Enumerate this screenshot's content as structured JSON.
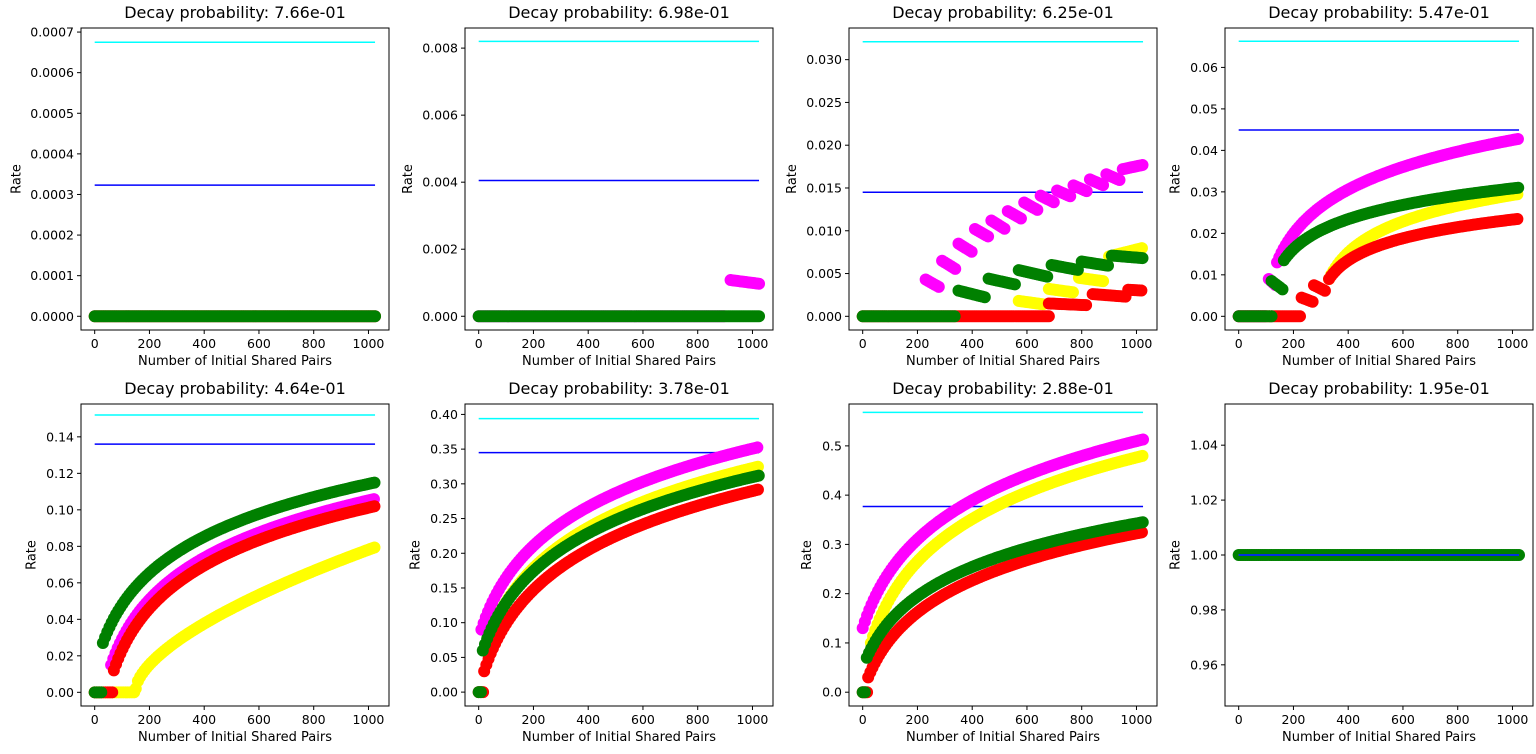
{
  "colors": {
    "magenta": "#ff00ff",
    "yellow": "#ffff00",
    "red": "#ff0000",
    "green": "#008000",
    "cyan": "#00ffff",
    "blue": "#0000ff"
  },
  "chart_data": [
    {
      "type": "scatter",
      "title": "Decay probability: 7.66e-01",
      "xlabel": "Number of Initial Shared Pairs",
      "ylabel": "Rate",
      "xlim": [
        -50,
        1075
      ],
      "ylim": [
        -3.38e-05,
        0.00071
      ],
      "xticks": [
        0,
        200,
        400,
        600,
        800,
        1000
      ],
      "yticks": [
        0,
        0.0001,
        0.0002,
        0.0003,
        0.0004,
        0.0005,
        0.0006,
        0.0007
      ],
      "ytick_labels": [
        "0.0000",
        "0.0001",
        "0.0002",
        "0.0003",
        "0.0004",
        "0.0005",
        "0.0006",
        "0.0007"
      ],
      "hlines": [
        {
          "color": "cyan",
          "y": 0.000675
        },
        {
          "color": "blue",
          "y": 0.000323
        }
      ],
      "series": [
        {
          "color": "red",
          "segments": [
            {
              "x0": 0,
              "x1": 1024,
              "y0": 0,
              "y1": 0
            }
          ]
        },
        {
          "color": "green",
          "segments": [
            {
              "x0": 0,
              "x1": 1024,
              "y0": 0,
              "y1": 0
            }
          ]
        }
      ]
    },
    {
      "type": "scatter",
      "title": "Decay probability: 6.98e-01",
      "xlabel": "Number of Initial Shared Pairs",
      "ylabel": "Rate",
      "xlim": [
        -50,
        1075
      ],
      "ylim": [
        -0.00041,
        0.0086
      ],
      "xticks": [
        0,
        200,
        400,
        600,
        800,
        1000
      ],
      "yticks": [
        0,
        0.002,
        0.004,
        0.006,
        0.008
      ],
      "ytick_labels": [
        "0.000",
        "0.002",
        "0.004",
        "0.006",
        "0.008"
      ],
      "hlines": [
        {
          "color": "cyan",
          "y": 0.0082
        },
        {
          "color": "blue",
          "y": 0.00405
        }
      ],
      "series": [
        {
          "color": "magenta",
          "segments": [
            {
              "x0": 0,
              "x1": 900,
              "y0": 0,
              "y1": 0
            },
            {
              "x0": 920,
              "x1": 1024,
              "y0": 0.00108,
              "y1": 0.00097
            }
          ]
        },
        {
          "color": "green",
          "segments": [
            {
              "x0": 0,
              "x1": 1024,
              "y0": 0,
              "y1": 0
            }
          ]
        }
      ]
    },
    {
      "type": "scatter",
      "title": "Decay probability: 6.25e-01",
      "xlabel": "Number of Initial Shared Pairs",
      "ylabel": "Rate",
      "xlim": [
        -50,
        1075
      ],
      "ylim": [
        -0.0016,
        0.0337
      ],
      "xticks": [
        0,
        200,
        400,
        600,
        800,
        1000
      ],
      "yticks": [
        0,
        0.005,
        0.01,
        0.015,
        0.02,
        0.025,
        0.03
      ],
      "ytick_labels": [
        "0.000",
        "0.005",
        "0.010",
        "0.015",
        "0.020",
        "0.025",
        "0.030"
      ],
      "hlines": [
        {
          "color": "cyan",
          "y": 0.0321
        },
        {
          "color": "blue",
          "y": 0.0145
        }
      ],
      "series": [
        {
          "color": "magenta",
          "segments": [
            {
              "x0": 230,
              "x1": 280,
              "y0": 0.0043,
              "y1": 0.0034
            },
            {
              "x0": 290,
              "x1": 340,
              "y0": 0.0065,
              "y1": 0.0055
            },
            {
              "x0": 350,
              "x1": 400,
              "y0": 0.0085,
              "y1": 0.0075
            },
            {
              "x0": 410,
              "x1": 460,
              "y0": 0.0102,
              "y1": 0.0093
            },
            {
              "x0": 470,
              "x1": 520,
              "y0": 0.0112,
              "y1": 0.0102
            },
            {
              "x0": 530,
              "x1": 580,
              "y0": 0.0123,
              "y1": 0.0114
            },
            {
              "x0": 590,
              "x1": 640,
              "y0": 0.0133,
              "y1": 0.0124
            },
            {
              "x0": 650,
              "x1": 700,
              "y0": 0.0141,
              "y1": 0.0133
            },
            {
              "x0": 710,
              "x1": 760,
              "y0": 0.0147,
              "y1": 0.014
            },
            {
              "x0": 770,
              "x1": 820,
              "y0": 0.0153,
              "y1": 0.0146
            },
            {
              "x0": 830,
              "x1": 880,
              "y0": 0.016,
              "y1": 0.0153
            },
            {
              "x0": 890,
              "x1": 940,
              "y0": 0.0166,
              "y1": 0.0159
            },
            {
              "x0": 950,
              "x1": 1024,
              "y0": 0.0172,
              "y1": 0.0177
            }
          ]
        },
        {
          "color": "yellow",
          "segments": [
            {
              "x0": 570,
              "x1": 660,
              "y0": 0.0018,
              "y1": 0.0014
            },
            {
              "x0": 680,
              "x1": 770,
              "y0": 0.0032,
              "y1": 0.0028
            },
            {
              "x0": 790,
              "x1": 880,
              "y0": 0.0045,
              "y1": 0.0041
            },
            {
              "x0": 900,
              "x1": 1024,
              "y0": 0.007,
              "y1": 0.008
            }
          ]
        },
        {
          "color": "red",
          "segments": [
            {
              "x0": 0,
              "x1": 680,
              "y0": 0,
              "y1": 0
            },
            {
              "x0": 680,
              "x1": 820,
              "y0": 0.0015,
              "y1": 0.0013
            },
            {
              "x0": 840,
              "x1": 960,
              "y0": 0.0026,
              "y1": 0.0023
            },
            {
              "x0": 970,
              "x1": 1024,
              "y0": 0.0031,
              "y1": 0.003
            }
          ]
        },
        {
          "color": "green",
          "segments": [
            {
              "x0": 0,
              "x1": 340,
              "y0": 0,
              "y1": 0
            },
            {
              "x0": 350,
              "x1": 450,
              "y0": 0.003,
              "y1": 0.0022
            },
            {
              "x0": 460,
              "x1": 560,
              "y0": 0.0044,
              "y1": 0.0037
            },
            {
              "x0": 570,
              "x1": 680,
              "y0": 0.0054,
              "y1": 0.0046
            },
            {
              "x0": 690,
              "x1": 790,
              "y0": 0.006,
              "y1": 0.0054
            },
            {
              "x0": 800,
              "x1": 900,
              "y0": 0.0064,
              "y1": 0.0059
            },
            {
              "x0": 910,
              "x1": 1024,
              "y0": 0.0071,
              "y1": 0.0068
            }
          ]
        }
      ]
    },
    {
      "type": "scatter",
      "title": "Decay probability: 5.47e-01",
      "xlabel": "Number of Initial Shared Pairs",
      "ylabel": "Rate",
      "xlim": [
        -50,
        1075
      ],
      "ylim": [
        -0.0033,
        0.0695
      ],
      "xticks": [
        0,
        200,
        400,
        600,
        800,
        1000
      ],
      "yticks": [
        0,
        0.01,
        0.02,
        0.03,
        0.04,
        0.05,
        0.06
      ],
      "ytick_labels": [
        "0.00",
        "0.01",
        "0.02",
        "0.03",
        "0.04",
        "0.05",
        "0.06"
      ],
      "hlines": [
        {
          "color": "cyan",
          "y": 0.0663
        },
        {
          "color": "blue",
          "y": 0.0449
        }
      ],
      "series": [
        {
          "color": "magenta",
          "segments": [
            {
              "x0": 0,
              "x1": 100,
              "y0": 0,
              "y1": 0
            },
            {
              "x0": 110,
              "x1": 135,
              "y0": 0.009,
              "y1": 0.0075
            },
            {
              "x0": 140,
              "x1": 1024,
              "y0": 0.013,
              "y1": 0.0428,
              "curve": "log"
            }
          ]
        },
        {
          "color": "yellow",
          "segments": [
            {
              "x0": 330,
              "x1": 1024,
              "y0": 0.009,
              "y1": 0.0295,
              "curve": "log"
            }
          ]
        },
        {
          "color": "red",
          "segments": [
            {
              "x0": 0,
              "x1": 230,
              "y0": 0,
              "y1": 0
            },
            {
              "x0": 230,
              "x1": 270,
              "y0": 0.0045,
              "y1": 0.0035
            },
            {
              "x0": 275,
              "x1": 320,
              "y0": 0.0075,
              "y1": 0.006
            },
            {
              "x0": 330,
              "x1": 1024,
              "y0": 0.009,
              "y1": 0.0235,
              "curve": "log"
            }
          ]
        },
        {
          "color": "green",
          "segments": [
            {
              "x0": 0,
              "x1": 120,
              "y0": 0,
              "y1": 0
            },
            {
              "x0": 120,
              "x1": 160,
              "y0": 0.0085,
              "y1": 0.0065
            },
            {
              "x0": 165,
              "x1": 1024,
              "y0": 0.0135,
              "y1": 0.031,
              "curve": "log"
            }
          ]
        }
      ]
    },
    {
      "type": "scatter",
      "title": "Decay probability: 4.64e-01",
      "xlabel": "Number of Initial Shared Pairs",
      "ylabel": "Rate",
      "xlim": [
        -50,
        1075
      ],
      "ylim": [
        -0.0075,
        0.158
      ],
      "xticks": [
        0,
        200,
        400,
        600,
        800,
        1000
      ],
      "yticks": [
        0,
        0.02,
        0.04,
        0.06,
        0.08,
        0.1,
        0.12,
        0.14
      ],
      "ytick_labels": [
        "0.00",
        "0.02",
        "0.04",
        "0.06",
        "0.08",
        "0.10",
        "0.12",
        "0.14"
      ],
      "hlines": [
        {
          "color": "cyan",
          "y": 0.152
        },
        {
          "color": "blue",
          "y": 0.136
        }
      ],
      "series": [
        {
          "color": "magenta",
          "segments": [
            {
              "x0": 60,
              "x1": 1024,
              "y0": 0.015,
              "y1": 0.106,
              "curve": "log"
            }
          ]
        },
        {
          "color": "yellow",
          "segments": [
            {
              "x0": 0,
              "x1": 150,
              "y0": 0,
              "y1": 0
            },
            {
              "x0": 150,
              "x1": 1024,
              "y0": 0.002,
              "y1": 0.0795,
              "curve": "pow"
            }
          ]
        },
        {
          "color": "red",
          "segments": [
            {
              "x0": 0,
              "x1": 70,
              "y0": 0,
              "y1": 0
            },
            {
              "x0": 70,
              "x1": 1024,
              "y0": 0.012,
              "y1": 0.102,
              "curve": "log"
            }
          ]
        },
        {
          "color": "green",
          "segments": [
            {
              "x0": 0,
              "x1": 30,
              "y0": 0,
              "y1": 0
            },
            {
              "x0": 30,
              "x1": 1024,
              "y0": 0.027,
              "y1": 0.115,
              "curve": "log"
            }
          ]
        }
      ]
    },
    {
      "type": "scatter",
      "title": "Decay probability: 3.78e-01",
      "xlabel": "Number of Initial Shared Pairs",
      "ylabel": "Rate",
      "xlim": [
        -50,
        1075
      ],
      "ylim": [
        -0.02,
        0.415
      ],
      "xticks": [
        0,
        200,
        400,
        600,
        800,
        1000
      ],
      "yticks": [
        0,
        0.05,
        0.1,
        0.15,
        0.2,
        0.25,
        0.3,
        0.35,
        0.4
      ],
      "ytick_labels": [
        "0.00",
        "0.05",
        "0.10",
        "0.15",
        "0.20",
        "0.25",
        "0.30",
        "0.35",
        "0.40"
      ],
      "hlines": [
        {
          "color": "cyan",
          "y": 0.394
        },
        {
          "color": "blue",
          "y": 0.345
        }
      ],
      "series": [
        {
          "color": "magenta",
          "segments": [
            {
              "x0": 10,
              "x1": 1024,
              "y0": 0.09,
              "y1": 0.353,
              "curve": "log"
            }
          ]
        },
        {
          "color": "yellow",
          "segments": [
            {
              "x0": 20,
              "x1": 1024,
              "y0": 0.06,
              "y1": 0.325,
              "curve": "log"
            }
          ]
        },
        {
          "color": "red",
          "segments": [
            {
              "x0": 0,
              "x1": 20,
              "y0": 0,
              "y1": 0
            },
            {
              "x0": 20,
              "x1": 1024,
              "y0": 0.03,
              "y1": 0.292,
              "curve": "log"
            }
          ]
        },
        {
          "color": "green",
          "segments": [
            {
              "x0": 0,
              "x1": 15,
              "y0": 0,
              "y1": 0
            },
            {
              "x0": 15,
              "x1": 1024,
              "y0": 0.06,
              "y1": 0.312,
              "curve": "log"
            }
          ]
        }
      ]
    },
    {
      "type": "scatter",
      "title": "Decay probability: 2.88e-01",
      "xlabel": "Number of Initial Shared Pairs",
      "ylabel": "Rate",
      "xlim": [
        -50,
        1075
      ],
      "ylim": [
        -0.028,
        0.585
      ],
      "xticks": [
        0,
        200,
        400,
        600,
        800,
        1000
      ],
      "yticks": [
        0,
        0.1,
        0.2,
        0.3,
        0.4,
        0.5
      ],
      "ytick_labels": [
        "0.0",
        "0.1",
        "0.2",
        "0.3",
        "0.4",
        "0.5"
      ],
      "hlines": [
        {
          "color": "cyan",
          "y": 0.568
        },
        {
          "color": "blue",
          "y": 0.377
        }
      ],
      "series": [
        {
          "color": "magenta",
          "segments": [
            {
              "x0": 0,
              "x1": 1024,
              "y0": 0.13,
              "y1": 0.513,
              "curve": "log"
            }
          ]
        },
        {
          "color": "yellow",
          "segments": [
            {
              "x0": 30,
              "x1": 1024,
              "y0": 0.1,
              "y1": 0.48,
              "curve": "log"
            }
          ]
        },
        {
          "color": "red",
          "segments": [
            {
              "x0": 0,
              "x1": 20,
              "y0": 0,
              "y1": 0
            },
            {
              "x0": 20,
              "x1": 1024,
              "y0": 0.03,
              "y1": 0.325,
              "curve": "log"
            }
          ]
        },
        {
          "color": "green",
          "segments": [
            {
              "x0": 0,
              "x1": 15,
              "y0": 0,
              "y1": 0
            },
            {
              "x0": 15,
              "x1": 1024,
              "y0": 0.07,
              "y1": 0.345,
              "curve": "log"
            }
          ]
        }
      ]
    },
    {
      "type": "scatter",
      "title": "Decay probability: 1.95e-01",
      "xlabel": "Number of Initial Shared Pairs",
      "ylabel": "Rate",
      "xlim": [
        -50,
        1075
      ],
      "ylim": [
        0.945,
        1.055
      ],
      "xticks": [
        0,
        200,
        400,
        600,
        800,
        1000
      ],
      "yticks": [
        0.96,
        0.98,
        1.0,
        1.02,
        1.04
      ],
      "ytick_labels": [
        "0.96",
        "0.98",
        "1.00",
        "1.02",
        "1.04"
      ],
      "hlines": [
        {
          "color": "cyan",
          "y": 1.0
        },
        {
          "color": "blue",
          "y": 1.0
        }
      ],
      "series": [
        {
          "color": "green",
          "segments": [
            {
              "x0": 0,
              "x1": 1024,
              "y0": 1.0,
              "y1": 1.0
            }
          ]
        }
      ],
      "hline_on_top": true
    }
  ]
}
